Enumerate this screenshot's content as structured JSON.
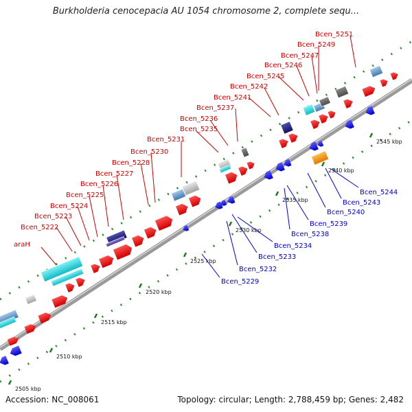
{
  "title": "Burkholderia cenocepacia AU 1054 chromosome 2, complete sequ...",
  "footer": {
    "accession": "Accession: NC_008061",
    "summary": "Topology: circular; Length: 2,788,459 bp; Genes: 2,482"
  },
  "colors": {
    "forward_label": "#cc0000",
    "reverse_label": "#0000cc",
    "cds_forward": "#ff0000",
    "cds_reverse": "#1a1aff",
    "backbone": "#888888",
    "ticks": "#228b22"
  },
  "scale": {
    "unit": "kbp",
    "ticks": [
      {
        "pos": 2505,
        "label": "2505 kbp"
      },
      {
        "pos": 2510,
        "label": "2510 kbp"
      },
      {
        "pos": 2515,
        "label": "2515 kbp"
      },
      {
        "pos": 2520,
        "label": "2520 kbp"
      },
      {
        "pos": 2525,
        "label": "2525 kbp"
      },
      {
        "pos": 2530,
        "label": "2530 kbp"
      },
      {
        "pos": 2535,
        "label": "2535 kbp"
      },
      {
        "pos": 2540,
        "label": "2540 kbp"
      },
      {
        "pos": 2545,
        "label": "2545 kbp"
      }
    ]
  },
  "forward_labels": [
    "araH",
    "Bcen_5222",
    "Bcen_5223",
    "Bcen_5224",
    "Bcen_5225",
    "Bcen_5226",
    "Bcen_5227",
    "Bcen_5228",
    "Bcen_5230",
    "Bcen_5231",
    "Bcen_5235",
    "Bcen_5236",
    "Bcen_5237",
    "Bcen_5241",
    "Bcen_5242",
    "Bcen_5245",
    "Bcen_5246",
    "Bcen_5247",
    "Bcen_5249",
    "Bcen_5251"
  ],
  "reverse_labels": [
    "Bcen_5229",
    "Bcen_5232",
    "Bcen_5233",
    "Bcen_5234",
    "Bcen_5238",
    "Bcen_5239",
    "Bcen_5240",
    "Bcen_5243",
    "Bcen_5244"
  ]
}
